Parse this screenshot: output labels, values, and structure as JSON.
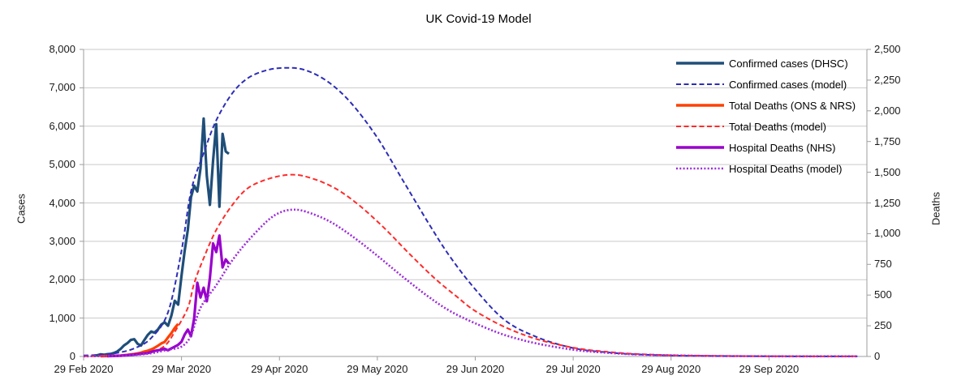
{
  "title": "UK Covid-19 Model",
  "colors": {
    "background": "#FFFFFF",
    "grid": "#C9C9C9",
    "axis": "#9E9E9E",
    "text": "#1A1A1A",
    "confirmed_actual": "#1F4E79",
    "confirmed_model": "#2D2DB8",
    "total_deaths_actual": "#FF4000",
    "total_deaths_model": "#FF2B2B",
    "hospital_deaths_actual": "#9900CC",
    "hospital_deaths_model": "#9D2BDB"
  },
  "chart_data": {
    "type": "line",
    "title": "UK Covid-19 Model",
    "grid": "horizontal-only",
    "legend_position": "inside-top-right",
    "x_axis": {
      "tick_labels": [
        "29 Feb 2020",
        "29 Mar 2020",
        "29 Apr 2020",
        "29 May 2020",
        "29 Jun 2020",
        "29 Jul 2020",
        "29 Aug 2020",
        "29 Sep 2020"
      ],
      "tick_days": [
        0,
        29,
        60,
        90,
        121,
        151,
        182,
        213
      ],
      "month_boundaries_days": [
        0,
        29,
        60,
        90,
        121,
        151,
        182,
        213,
        244
      ],
      "axis_end_day": 241
    },
    "y_left": {
      "label": "Cases",
      "min": 0,
      "max": 8000,
      "step": 1000,
      "tick_labels": [
        "0",
        "1,000",
        "2,000",
        "3,000",
        "4,000",
        "5,000",
        "6,000",
        "7,000",
        "8,000"
      ]
    },
    "y_right": {
      "label": "Deaths",
      "min": 0,
      "max": 2500,
      "step": 250,
      "tick_labels": [
        "0",
        "250",
        "500",
        "750",
        "1,000",
        "1,250",
        "1,500",
        "1,750",
        "2,000",
        "2,250",
        "2,500"
      ]
    },
    "series": [
      {
        "name": "Confirmed cases (DHSC)",
        "axis": "left",
        "style": "solid",
        "color": "#1F4E79",
        "width": 3.2,
        "smooth": false,
        "points": [
          [
            3,
            20
          ],
          [
            4,
            30
          ],
          [
            5,
            55
          ],
          [
            6,
            45
          ],
          [
            7,
            60
          ],
          [
            8,
            65
          ],
          [
            9,
            90
          ],
          [
            10,
            130
          ],
          [
            11,
            200
          ],
          [
            12,
            290
          ],
          [
            13,
            350
          ],
          [
            14,
            430
          ],
          [
            15,
            450
          ],
          [
            16,
            330
          ],
          [
            17,
            285
          ],
          [
            18,
            430
          ],
          [
            19,
            560
          ],
          [
            20,
            650
          ],
          [
            21,
            620
          ],
          [
            22,
            700
          ],
          [
            23,
            830
          ],
          [
            24,
            890
          ],
          [
            25,
            800
          ],
          [
            26,
            1060
          ],
          [
            27,
            1450
          ],
          [
            28,
            1350
          ],
          [
            29,
            2100
          ],
          [
            30,
            2750
          ],
          [
            31,
            3300
          ],
          [
            32,
            4150
          ],
          [
            33,
            4450
          ],
          [
            34,
            4300
          ],
          [
            35,
            4900
          ],
          [
            36,
            6200
          ],
          [
            37,
            4700
          ],
          [
            38,
            3950
          ],
          [
            39,
            5100
          ],
          [
            40,
            6050
          ],
          [
            41,
            3900
          ],
          [
            42,
            5800
          ],
          [
            43,
            5340
          ],
          [
            44,
            5280
          ]
        ]
      },
      {
        "name": "Confirmed cases (model)",
        "axis": "left",
        "style": "dashed",
        "color": "#2D2DB8",
        "width": 2,
        "smooth": true,
        "points": [
          [
            0,
            25
          ],
          [
            5,
            45
          ],
          [
            10,
            95
          ],
          [
            15,
            210
          ],
          [
            20,
            480
          ],
          [
            25,
            1150
          ],
          [
            29,
            2750
          ],
          [
            32,
            4300
          ],
          [
            36,
            5300
          ],
          [
            40,
            6150
          ],
          [
            45,
            6850
          ],
          [
            50,
            7250
          ],
          [
            56,
            7460
          ],
          [
            62,
            7520
          ],
          [
            68,
            7460
          ],
          [
            75,
            7150
          ],
          [
            82,
            6600
          ],
          [
            90,
            5700
          ],
          [
            98,
            4600
          ],
          [
            106,
            3500
          ],
          [
            113,
            2600
          ],
          [
            121,
            1750
          ],
          [
            130,
            950
          ],
          [
            140,
            500
          ],
          [
            151,
            220
          ],
          [
            160,
            120
          ],
          [
            170,
            60
          ],
          [
            182,
            25
          ],
          [
            195,
            12
          ],
          [
            210,
            6
          ],
          [
            225,
            3
          ],
          [
            241,
            2
          ]
        ]
      },
      {
        "name": "Total Deaths (ONS & NRS)",
        "axis": "right",
        "style": "solid",
        "color": "#FF4000",
        "width": 3.2,
        "smooth": false,
        "points": [
          [
            5,
            2
          ],
          [
            7,
            3
          ],
          [
            9,
            5
          ],
          [
            11,
            8
          ],
          [
            13,
            13
          ],
          [
            15,
            20
          ],
          [
            16,
            25
          ],
          [
            17,
            31
          ],
          [
            18,
            40
          ],
          [
            19,
            47
          ],
          [
            20,
            57
          ],
          [
            21,
            70
          ],
          [
            22,
            87
          ],
          [
            23,
            106
          ],
          [
            24,
            118
          ],
          [
            25,
            155
          ],
          [
            26,
            190
          ],
          [
            27,
            232
          ],
          [
            28,
            265
          ]
        ]
      },
      {
        "name": "Total Deaths (model)",
        "axis": "right",
        "style": "dashed",
        "color": "#FF2B2B",
        "width": 2,
        "smooth": true,
        "points": [
          [
            0,
            1
          ],
          [
            8,
            5
          ],
          [
            14,
            12
          ],
          [
            20,
            40
          ],
          [
            24,
            86
          ],
          [
            27,
            200
          ],
          [
            31,
            396
          ],
          [
            33,
            594
          ],
          [
            36,
            800
          ],
          [
            40,
            1030
          ],
          [
            45,
            1230
          ],
          [
            50,
            1370
          ],
          [
            57,
            1450
          ],
          [
            64,
            1480
          ],
          [
            70,
            1450
          ],
          [
            77,
            1370
          ],
          [
            84,
            1240
          ],
          [
            92,
            1050
          ],
          [
            100,
            840
          ],
          [
            108,
            640
          ],
          [
            115,
            490
          ],
          [
            121,
            370
          ],
          [
            130,
            240
          ],
          [
            140,
            140
          ],
          [
            151,
            72
          ],
          [
            160,
            42
          ],
          [
            170,
            22
          ],
          [
            182,
            10
          ],
          [
            195,
            5
          ],
          [
            210,
            2
          ],
          [
            225,
            1
          ],
          [
            241,
            1
          ]
        ]
      },
      {
        "name": "Hospital Deaths (NHS)",
        "axis": "right",
        "style": "solid",
        "color": "#9900CC",
        "width": 3.2,
        "smooth": false,
        "points": [
          [
            7,
            2
          ],
          [
            9,
            4
          ],
          [
            11,
            6
          ],
          [
            13,
            10
          ],
          [
            15,
            16
          ],
          [
            17,
            22
          ],
          [
            19,
            28
          ],
          [
            21,
            45
          ],
          [
            23,
            55
          ],
          [
            24,
            62
          ],
          [
            25,
            50
          ],
          [
            26,
            66
          ],
          [
            27,
            80
          ],
          [
            28,
            95
          ],
          [
            29,
            120
          ],
          [
            30,
            178
          ],
          [
            31,
            219
          ],
          [
            32,
            165
          ],
          [
            33,
            310
          ],
          [
            34,
            600
          ],
          [
            35,
            480
          ],
          [
            36,
            560
          ],
          [
            37,
            449
          ],
          [
            38,
            640
          ],
          [
            39,
            920
          ],
          [
            40,
            850
          ],
          [
            41,
            985
          ],
          [
            42,
            725
          ],
          [
            43,
            790
          ],
          [
            44,
            755
          ]
        ]
      },
      {
        "name": "Hospital Deaths (model)",
        "axis": "right",
        "style": "dotted",
        "color": "#9D2BDB",
        "width": 2.6,
        "smooth": true,
        "points": [
          [
            0,
            1
          ],
          [
            8,
            4
          ],
          [
            14,
            10
          ],
          [
            20,
            26
          ],
          [
            25,
            55
          ],
          [
            29,
            80
          ],
          [
            32,
            170
          ],
          [
            35,
            396
          ],
          [
            40,
            580
          ],
          [
            45,
            780
          ],
          [
            50,
            940
          ],
          [
            56,
            1100
          ],
          [
            60,
            1170
          ],
          [
            64,
            1195
          ],
          [
            68,
            1180
          ],
          [
            75,
            1105
          ],
          [
            82,
            985
          ],
          [
            90,
            820
          ],
          [
            98,
            650
          ],
          [
            106,
            490
          ],
          [
            113,
            370
          ],
          [
            121,
            270
          ],
          [
            130,
            175
          ],
          [
            140,
            105
          ],
          [
            151,
            55
          ],
          [
            160,
            33
          ],
          [
            170,
            18
          ],
          [
            182,
            9
          ],
          [
            195,
            4
          ],
          [
            210,
            2
          ],
          [
            225,
            1
          ],
          [
            241,
            1
          ]
        ]
      }
    ]
  }
}
